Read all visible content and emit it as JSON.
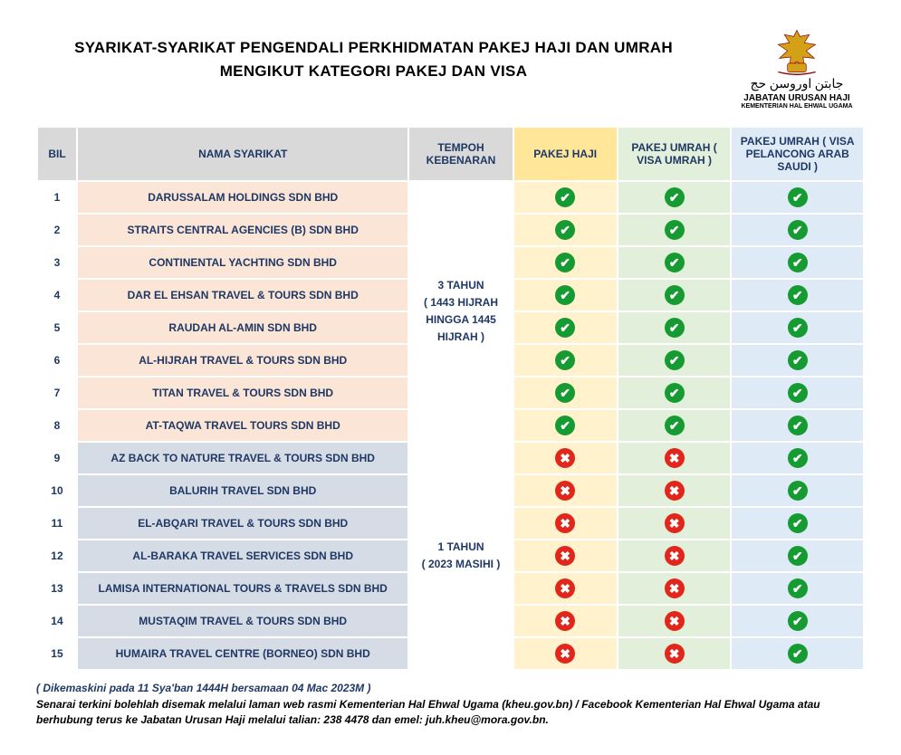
{
  "title_line1": "SYARIKAT-SYARIKAT PENGENDALI PERKHIDMATAN PAKEJ HAJI DAN UMRAH",
  "title_line2": "MENGIKUT KATEGORI PAKEJ DAN VISA",
  "logo": {
    "arabic": "جابتن اوروسن حج",
    "dept1": "JABATAN URUSAN HAJI",
    "dept2": "KEMENTERIAN HAL EHWAL UGAMA"
  },
  "headers": {
    "bil": "BIL",
    "name": "NAMA SYARIKAT",
    "tempoh": "TEMPOH KEBENARAN",
    "haji": "PAKEJ HAJI",
    "vu": "PAKEJ UMRAH ( VISA UMRAH )",
    "vp": "PAKEJ UMRAH ( VISA PELANCONG ARAB SAUDI )"
  },
  "groups": [
    {
      "name_bg": "name-orange",
      "tempoh": "3 TAHUN\n( 1443 HIJRAH\nHINGGA 1445\nHIJRAH )",
      "rows": [
        {
          "bil": "1",
          "name": "DARUSSALAM HOLDINGS SDN BHD",
          "haji": true,
          "vu": true,
          "vp": true
        },
        {
          "bil": "2",
          "name": "STRAITS CENTRAL AGENCIES (B) SDN BHD",
          "haji": true,
          "vu": true,
          "vp": true
        },
        {
          "bil": "3",
          "name": "CONTINENTAL YACHTING SDN BHD",
          "haji": true,
          "vu": true,
          "vp": true
        },
        {
          "bil": "4",
          "name": "DAR EL EHSAN TRAVEL & TOURS SDN BHD",
          "haji": true,
          "vu": true,
          "vp": true
        },
        {
          "bil": "5",
          "name": "RAUDAH AL-AMIN SDN BHD",
          "haji": true,
          "vu": true,
          "vp": true
        },
        {
          "bil": "6",
          "name": "AL-HIJRAH TRAVEL & TOURS SDN BHD",
          "haji": true,
          "vu": true,
          "vp": true
        },
        {
          "bil": "7",
          "name": "TITAN TRAVEL & TOURS SDN BHD",
          "haji": true,
          "vu": true,
          "vp": true
        },
        {
          "bil": "8",
          "name": "AT-TAQWA TRAVEL TOURS SDN BHD",
          "haji": true,
          "vu": true,
          "vp": true
        }
      ]
    },
    {
      "name_bg": "name-blue",
      "tempoh": "1 TAHUN\n( 2023 MASIHI )",
      "rows": [
        {
          "bil": "9",
          "name": "AZ BACK TO NATURE TRAVEL & TOURS SDN BHD",
          "haji": false,
          "vu": false,
          "vp": true
        },
        {
          "bil": "10",
          "name": "BALURIH TRAVEL SDN BHD",
          "haji": false,
          "vu": false,
          "vp": true
        },
        {
          "bil": "11",
          "name": "EL-ABQARI TRAVEL & TOURS SDN BHD",
          "haji": false,
          "vu": false,
          "vp": true
        },
        {
          "bil": "12",
          "name": "AL-BARAKA TRAVEL SERVICES SDN BHD",
          "haji": false,
          "vu": false,
          "vp": true
        },
        {
          "bil": "13",
          "name": "LAMISA INTERNATIONAL TOURS & TRAVELS SDN BHD",
          "haji": false,
          "vu": false,
          "vp": true
        },
        {
          "bil": "14",
          "name": "MUSTAQIM TRAVEL & TOURS SDN BHD",
          "haji": false,
          "vu": false,
          "vp": true
        },
        {
          "bil": "15",
          "name": "HUMAIRA TRAVEL CENTRE (BORNEO) SDN BHD",
          "haji": false,
          "vu": false,
          "vp": true
        }
      ]
    }
  ],
  "footer": {
    "updated": "( Dikemaskini pada 11 Sya'ban 1444H bersamaan 04 Mac 2023M )",
    "note": "Senarai terkini bolehlah disemak melalui laman web rasmi Kementerian Hal Ehwal Ugama (kheu.gov.bn) / Facebook Kementerian Hal Ehwal Ugama atau berhubung terus ke Jabatan Urusan Haji melalui talian: 238 4478 dan emel: juh.kheu@mora.gov.bn."
  },
  "colors": {
    "hdr_grey": "#d9d9d9",
    "hdr_haji": "#ffe699",
    "hdr_vu": "#e2efda",
    "hdr_vp": "#deebf7",
    "name_orange": "#fbe5d6",
    "name_blue": "#d6dce5",
    "haji_cell": "#fff2cc",
    "vu_cell": "#e2efda",
    "vp_cell": "#deebf7",
    "text_navy": "#1f3864",
    "ok": "#169b32",
    "no": "#e1261c",
    "border": "#ffffff"
  }
}
